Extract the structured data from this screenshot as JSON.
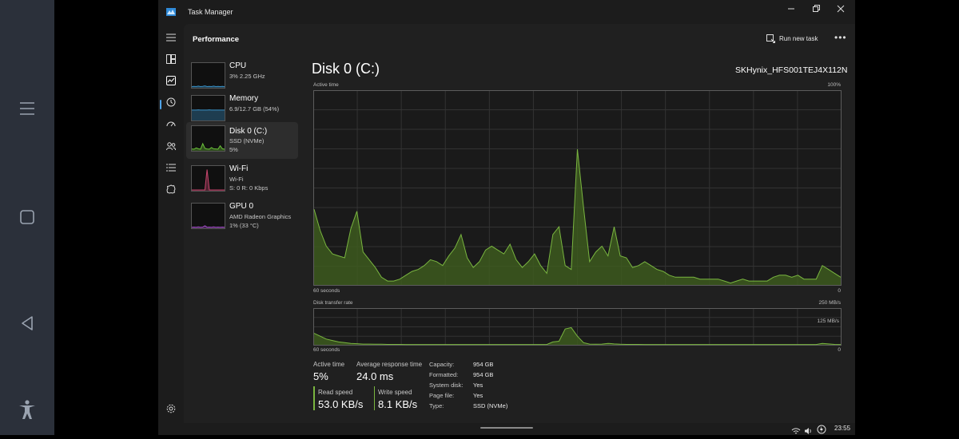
{
  "window": {
    "title": "Task Manager",
    "minimize": "—",
    "maximize": "❐",
    "close": "✕"
  },
  "android_nav": {
    "menu_icon": "menu-icon",
    "home_icon": "home-icon",
    "back_icon": "back-icon",
    "accessibility_icon": "accessibility-icon"
  },
  "nav_rail": [
    {
      "icon": "hamburger-icon"
    },
    {
      "icon": "processes-icon"
    },
    {
      "icon": "performance-icon",
      "selected": true
    },
    {
      "icon": "app-history-icon"
    },
    {
      "icon": "startup-apps-icon"
    },
    {
      "icon": "users-icon"
    },
    {
      "icon": "details-icon"
    },
    {
      "icon": "services-icon"
    },
    {
      "icon": "settings-icon"
    }
  ],
  "header": {
    "title": "Performance",
    "run_task": "Run new task",
    "more": "•••"
  },
  "list": [
    {
      "name": "CPU",
      "sub1": "3% 2.25 GHz",
      "sub2": "",
      "color": "#3a92c8"
    },
    {
      "name": "Memory",
      "sub1": "6.9/12.7 GB (54%)",
      "sub2": "",
      "color": "#3a92c8"
    },
    {
      "name": "Disk 0 (C:)",
      "sub1": "SSD (NVMe)",
      "sub2": "5%",
      "color": "#6cc43a",
      "selected": true
    },
    {
      "name": "Wi-Fi",
      "sub1": "Wi-Fi",
      "sub2": "S: 0 R: 0 Kbps",
      "color": "#c8466e"
    },
    {
      "name": "GPU 0",
      "sub1": "AMD Radeon Graphics",
      "sub2": "1% (33 °C)",
      "color": "#a44fc8"
    }
  ],
  "detail": {
    "title": "Disk 0 (C:)",
    "model": "SKHynix_HFS001TEJ4X112N",
    "active_chart": {
      "label": "Active time",
      "max_label": "100%",
      "time_label": "60 seconds",
      "min_label": "0",
      "ylim": [
        0,
        100
      ],
      "values": [
        39,
        28,
        20,
        16,
        15,
        14,
        29,
        38,
        17,
        13,
        9,
        4,
        2,
        2,
        3,
        5,
        7,
        8,
        10,
        13,
        12,
        10,
        15,
        19,
        26,
        14,
        9,
        12,
        18,
        20,
        18,
        16,
        21,
        13,
        9,
        12,
        16,
        10,
        6,
        26,
        30,
        10,
        8,
        70,
        40,
        12,
        17,
        20,
        15,
        30,
        15,
        14,
        9,
        10,
        12,
        10,
        8,
        7,
        5,
        4,
        4,
        4,
        4,
        3,
        3,
        3,
        3,
        2,
        1,
        2,
        3,
        2,
        2,
        2,
        2,
        4,
        5,
        5,
        4,
        5,
        3,
        3,
        3,
        10,
        8,
        6,
        4
      ]
    },
    "transfer_chart": {
      "label": "Disk transfer rate",
      "max_label": "250 MB/s",
      "mid_label": "125 MB/s",
      "time_label": "60 seconds",
      "min_label": "0",
      "ylim": [
        0,
        250
      ],
      "values": [
        80,
        60,
        40,
        30,
        20,
        15,
        10,
        8,
        5,
        5,
        4,
        4,
        3,
        3,
        3,
        2,
        2,
        2,
        2,
        2,
        2,
        2,
        2,
        2,
        2,
        2,
        2,
        2,
        2,
        2,
        2,
        2,
        2,
        2,
        2,
        2,
        2,
        2,
        2,
        20,
        25,
        110,
        120,
        60,
        15,
        5,
        4,
        5,
        10,
        6,
        4,
        3,
        3,
        3,
        2,
        2,
        2,
        2,
        2,
        2,
        2,
        2,
        2,
        2,
        2,
        2,
        2,
        2,
        2,
        2,
        2,
        2,
        2,
        2,
        2,
        2,
        2,
        2,
        2,
        2,
        2,
        2,
        2,
        10,
        6,
        3,
        2
      ]
    },
    "stats": {
      "active_time_label": "Active time",
      "active_time": "5%",
      "response_label": "Average response time",
      "response": "24.0 ms",
      "read_label": "Read speed",
      "read": "53.0 KB/s",
      "write_label": "Write speed",
      "write": "8.1 KB/s"
    },
    "props": [
      {
        "k": "Capacity:",
        "v": "954 GB"
      },
      {
        "k": "Formatted:",
        "v": "954 GB"
      },
      {
        "k": "System disk:",
        "v": "Yes"
      },
      {
        "k": "Page file:",
        "v": "Yes"
      },
      {
        "k": "Type:",
        "v": "SSD (NVMe)"
      }
    ]
  },
  "taskbar": {
    "time": "23:55"
  },
  "colors": {
    "accent": "#4fa3e8",
    "disk": "#7ab640",
    "disk_fill": "#3d5a1e"
  }
}
